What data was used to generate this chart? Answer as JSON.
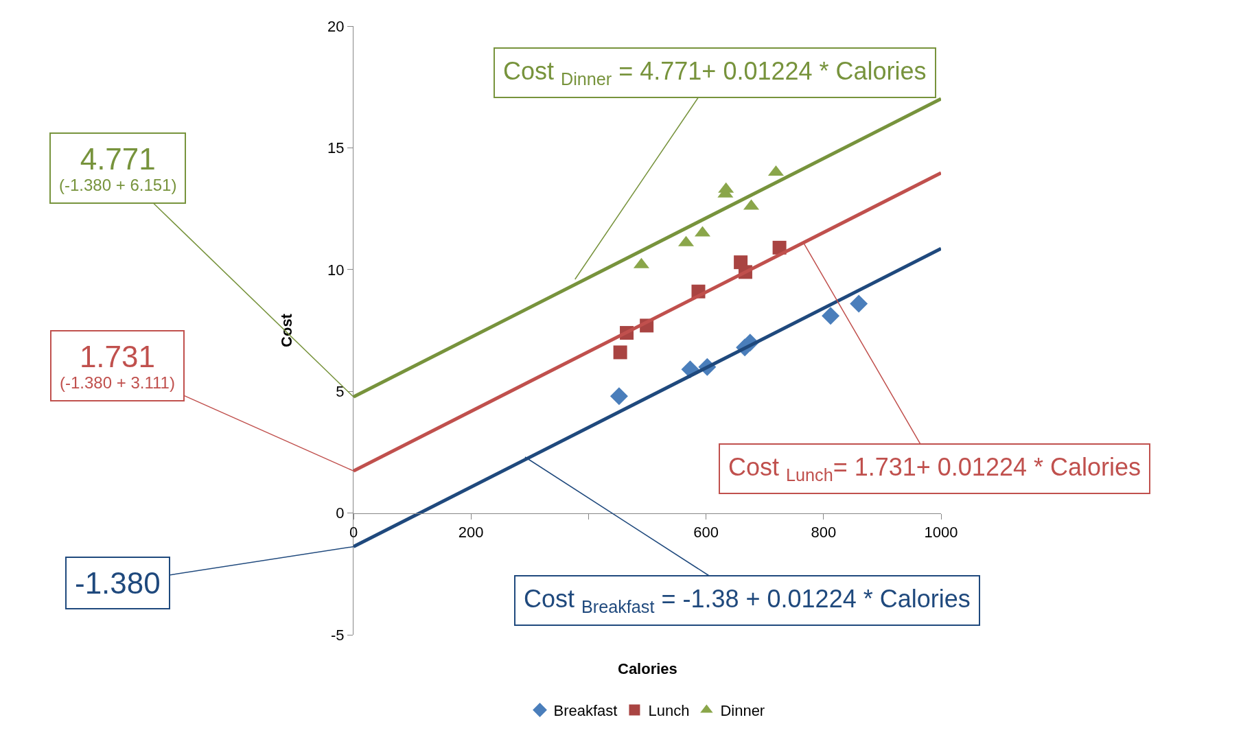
{
  "chart_data": {
    "type": "scatter",
    "xlabel": "Calories",
    "ylabel": "Cost",
    "xlim": [
      0,
      1000
    ],
    "ylim": [
      -5,
      20
    ],
    "xticks": [
      0,
      200,
      {
        "value": 400,
        "label": null
      },
      600,
      800,
      1000
    ],
    "yticks": [
      -5,
      0,
      5,
      10,
      15,
      20
    ],
    "legend": "bottom",
    "series": [
      {
        "name": "Breakfast",
        "color": "#4a7ebb",
        "marker": "diamond",
        "x": [
          452,
          573,
          602,
          666,
          675,
          812,
          860
        ],
        "values": [
          4.8,
          5.9,
          6.0,
          6.8,
          7.0,
          8.1,
          8.6
        ]
      },
      {
        "name": "Lunch",
        "color": "#a94442",
        "marker": "square",
        "x": [
          454,
          465,
          499,
          587,
          659,
          667,
          725
        ],
        "values": [
          6.6,
          7.4,
          7.7,
          9.1,
          10.3,
          9.9,
          10.9
        ]
      },
      {
        "name": "Dinner",
        "color": "#8aa64a",
        "marker": "triangle",
        "x": [
          490,
          566,
          594,
          633,
          634,
          677,
          719
        ],
        "values": [
          10.2,
          11.1,
          11.5,
          13.1,
          13.3,
          12.6,
          14.0
        ]
      },
      {
        "type": "line",
        "color": "#1f497d",
        "marker": "none",
        "x": [
          0,
          1000
        ],
        "values": [
          -1.38,
          10.86
        ]
      },
      {
        "type": "line",
        "color": "#c0504d",
        "marker": "none",
        "x": [
          0,
          1000
        ],
        "values": [
          1.731,
          13.971
        ]
      },
      {
        "type": "line",
        "color": "#77933c",
        "marker": "none",
        "x": [
          0,
          1000
        ],
        "values": [
          4.771,
          17.011
        ]
      }
    ],
    "annotations": [
      {
        "text": "Cost $_{Dinner}$ = 4.771+ 0.01224 * Calories",
        "x": 377,
        "y": 9.6
      },
      {
        "text": "4.771\n(-1.380 + 6.151)",
        "x": 0,
        "y": 4.771
      },
      {
        "text": "1.731\n(-1.380 + 3.111)",
        "x": 0,
        "y": 1.731
      },
      {
        "text": "-1.380",
        "x": 0,
        "y": -1.38
      },
      {
        "text": "Cost $_{Lunch}$= 1.731+ 0.01224 * Calories",
        "x": 766,
        "y": 11.1
      },
      {
        "text": "Cost $_{Breakfast}$ = -1.38 + 0.01224 * Calories",
        "x": 292,
        "y": 2.3
      }
    ]
  }
}
